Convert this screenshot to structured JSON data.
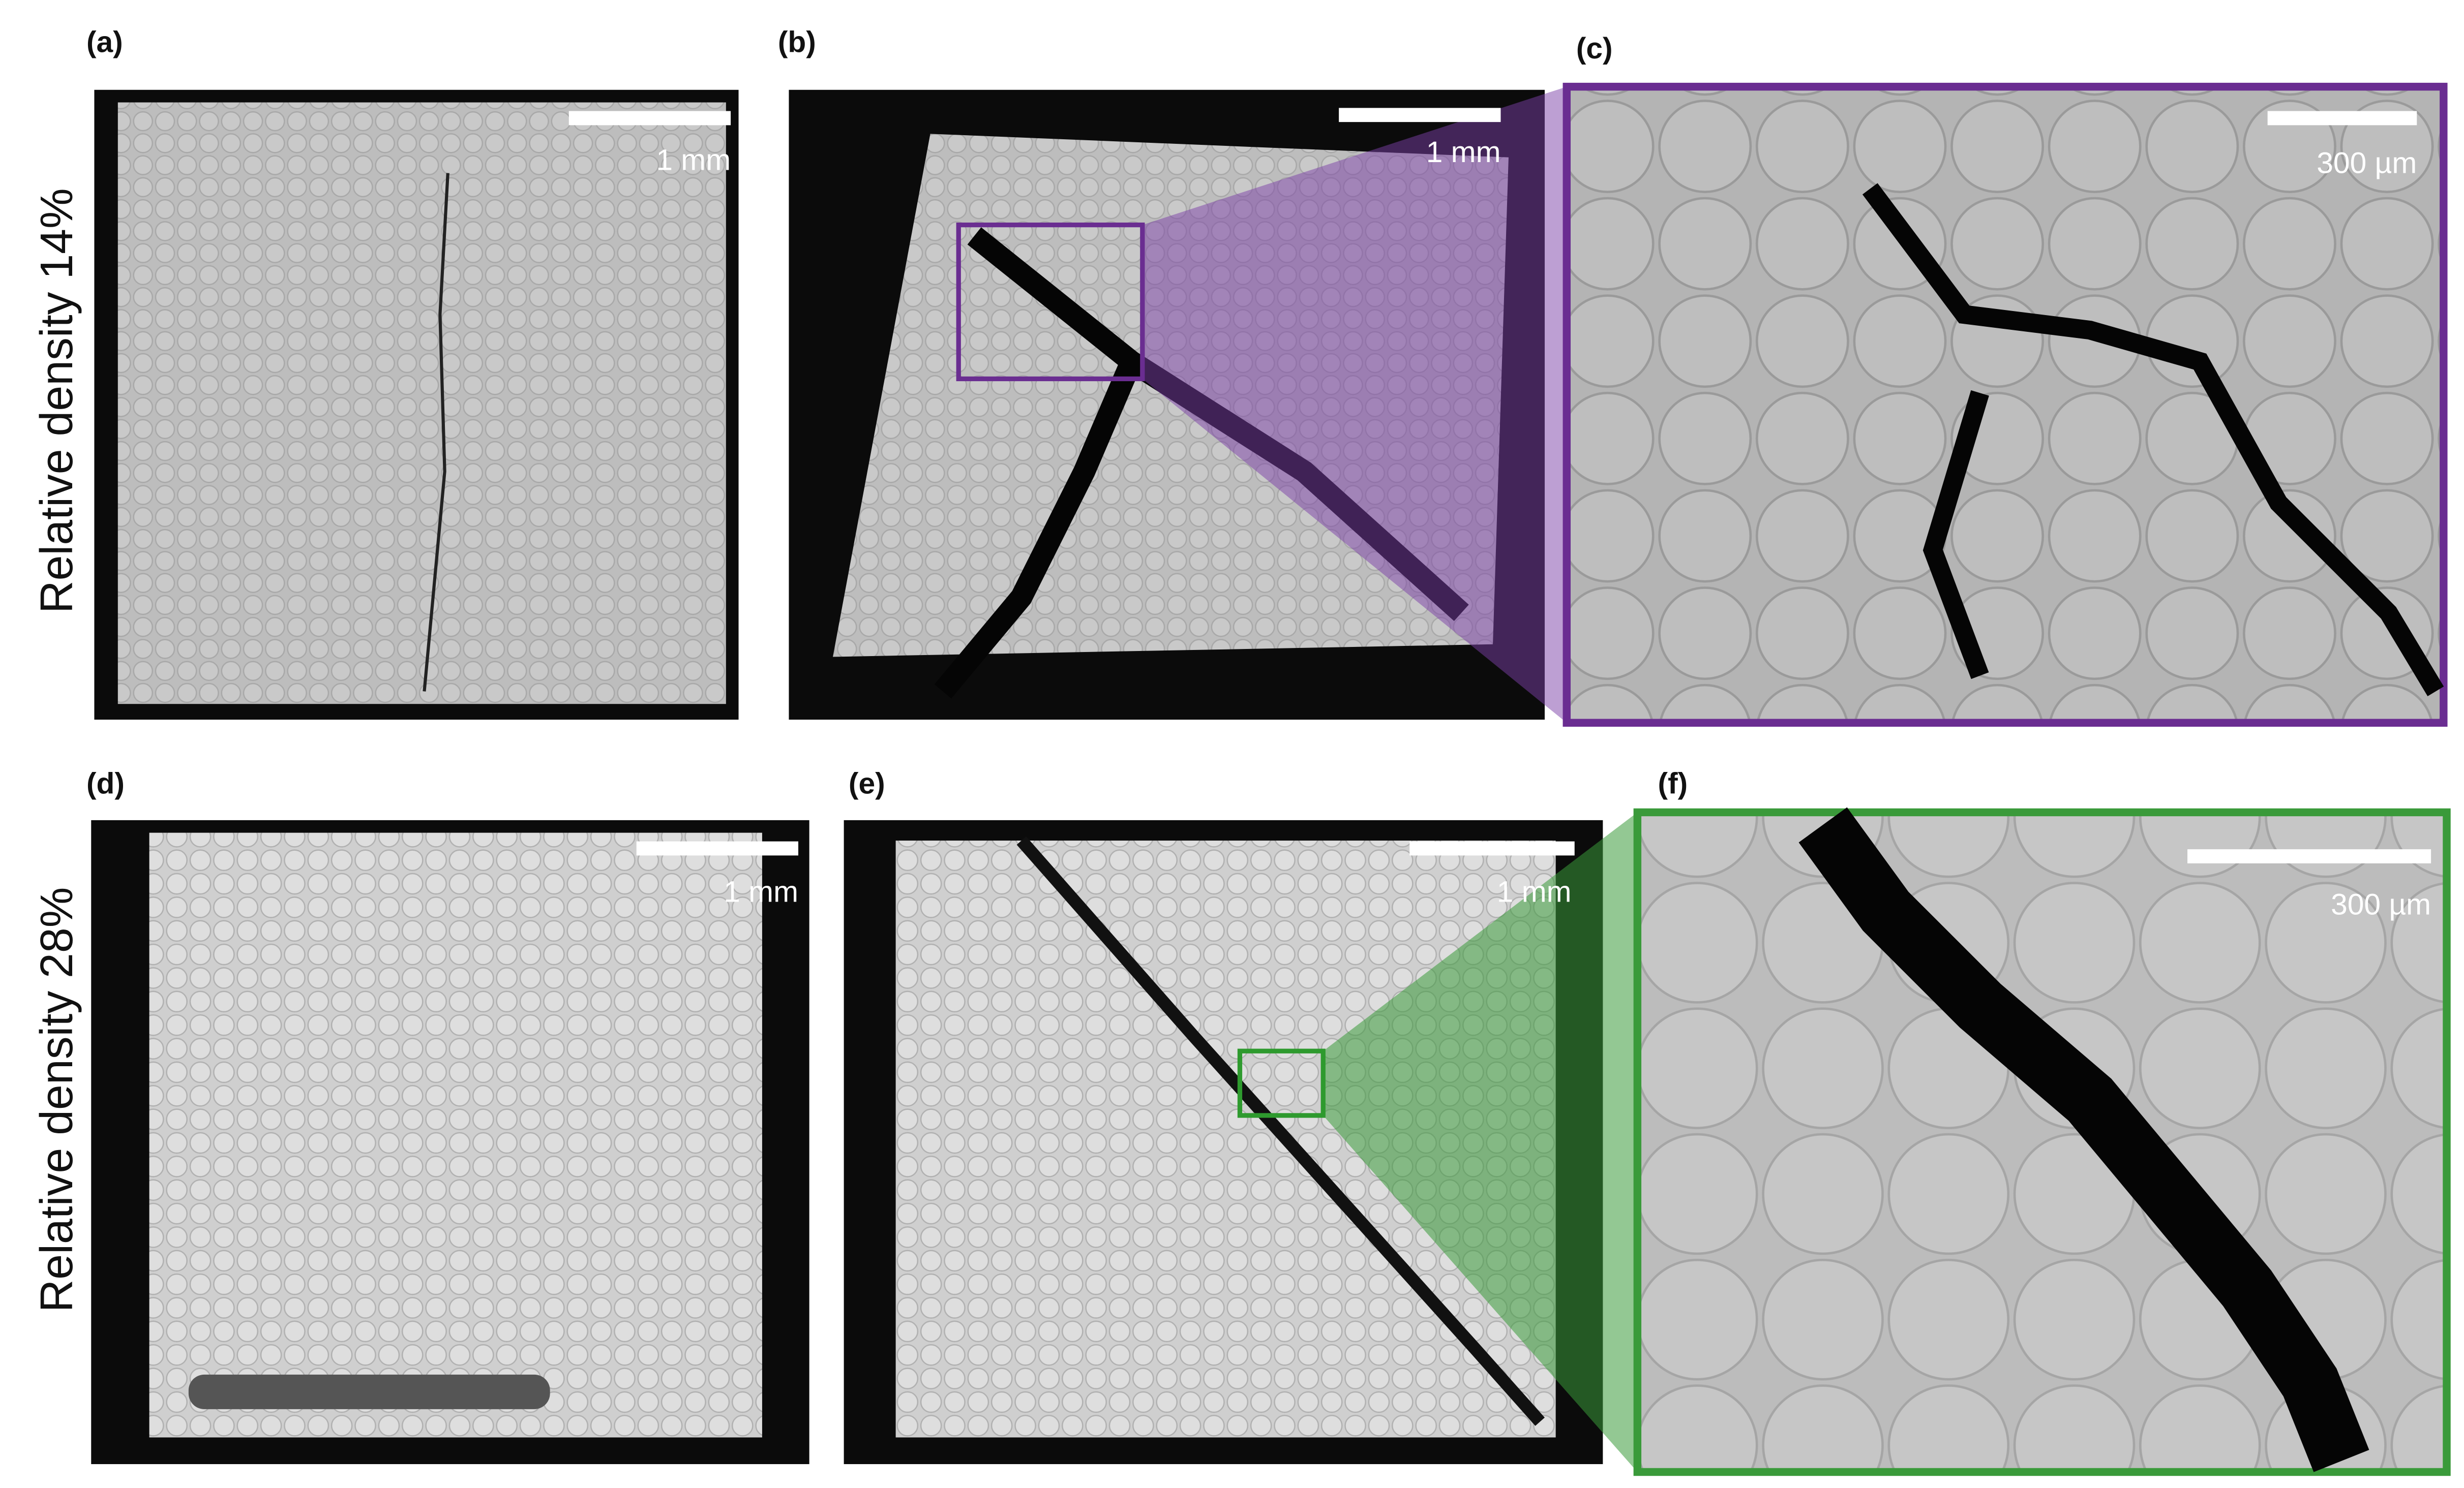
{
  "rows": [
    {
      "label": "Relative density 14%",
      "panels": [
        {
          "label": "(a)",
          "scale_bar": "1 mm"
        },
        {
          "label": "(b)",
          "scale_bar": "1 mm"
        },
        {
          "label": "(c)",
          "scale_bar": "300 µm"
        }
      ]
    },
    {
      "label": "Relative density 28%",
      "panels": [
        {
          "label": "(d)",
          "scale_bar": "1 mm"
        },
        {
          "label": "(e)",
          "scale_bar": "1 mm"
        },
        {
          "label": "(f)",
          "scale_bar": "300 µm"
        }
      ]
    }
  ]
}
